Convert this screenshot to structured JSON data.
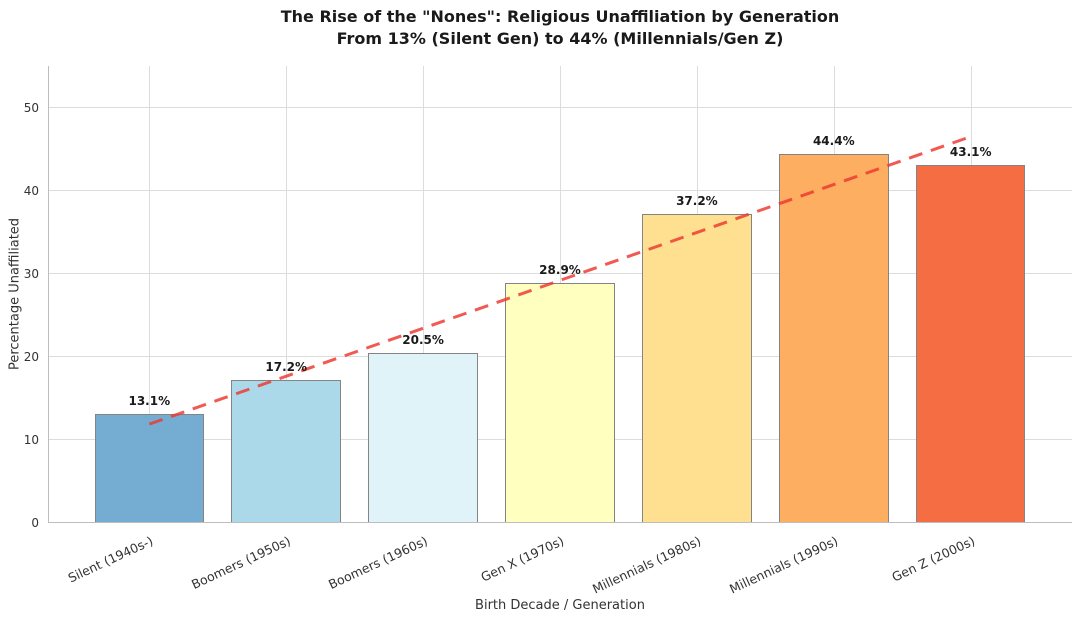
{
  "chart_data": {
    "type": "bar",
    "title": "The Rise of the \"Nones\": Religious Unaffiliation by Generation",
    "subtitle": "From 13% (Silent Gen) to 44% (Millennials/Gen Z)",
    "xlabel": "Birth Decade / Generation",
    "ylabel": "Percentage Unaffiliated",
    "categories": [
      "Silent (1940s-)",
      "Boomers (1950s)",
      "Boomers (1960s)",
      "Gen X (1970s)",
      "Millennials (1980s)",
      "Millennials (1990s)",
      "Gen Z (2000s)"
    ],
    "values": [
      13.1,
      17.2,
      20.5,
      28.9,
      37.2,
      44.4,
      43.1
    ],
    "value_labels": [
      "13.1%",
      "17.2%",
      "20.5%",
      "28.9%",
      "37.2%",
      "44.4%",
      "43.1%"
    ],
    "bar_colors": [
      "#74add1",
      "#abd9e9",
      "#e0f3f8",
      "#ffffbf",
      "#fee090",
      "#fdae61",
      "#f46d43"
    ],
    "bar_edge_color": "#848484",
    "y_ticks": [
      0,
      10,
      20,
      30,
      40,
      50
    ],
    "ylim": [
      0,
      55
    ],
    "bar_width_frac": 0.8,
    "x_pad": 0.74,
    "grid": true,
    "legend": "none",
    "background_color": "#ffffff",
    "grid_color": "#dcdcdc",
    "trendline": {
      "type": "linear",
      "style": "dashed",
      "color": "#ee372e",
      "opacity": 0.82,
      "x": [
        0,
        6
      ],
      "y": [
        11.9,
        46.5
      ]
    }
  }
}
